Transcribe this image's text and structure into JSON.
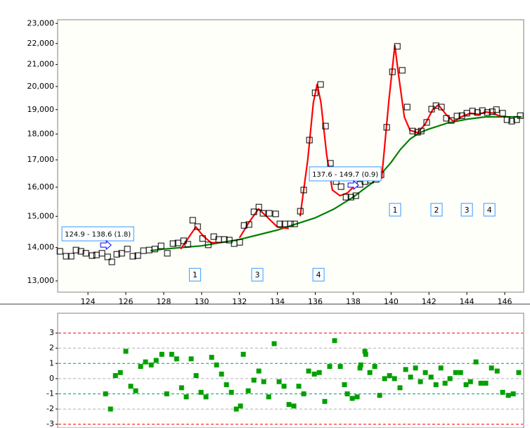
{
  "chart_data": [
    {
      "type": "scatter",
      "log_y": true,
      "xlim": [
        122.4,
        147.0
      ],
      "ylim": [
        12680,
        23190
      ],
      "xticks": [
        124,
        126,
        128,
        130,
        132,
        134,
        136,
        138,
        140,
        142,
        144,
        146
      ],
      "yticks": [
        {
          "value": 13000,
          "label": "13,000"
        },
        {
          "value": 14000,
          "label": "14,000"
        },
        {
          "value": 15000,
          "label": "15,000"
        },
        {
          "value": 16000,
          "label": "16,000"
        },
        {
          "value": 17000,
          "label": "17,000"
        },
        {
          "value": 18000,
          "label": "18,000"
        },
        {
          "value": 19000,
          "label": "19,000"
        },
        {
          "value": 20000,
          "label": "20,000"
        },
        {
          "value": 21000,
          "label": "21,000"
        },
        {
          "value": 22000,
          "label": "22,000"
        },
        {
          "value": 23000,
          "label": "23,000"
        }
      ],
      "series": [
        {
          "mark": "line",
          "color": "#008000",
          "x": [
            127.3,
            128,
            129,
            130,
            131,
            132,
            133,
            134,
            135,
            136,
            137,
            138,
            138.5,
            139,
            139.5,
            140,
            140.5,
            141,
            141.5,
            142,
            143,
            144,
            145,
            146,
            146.9
          ],
          "values": [
            13900,
            13950,
            14000,
            14050,
            14150,
            14250,
            14400,
            14550,
            14750,
            14950,
            15250,
            15650,
            15900,
            16150,
            16500,
            16900,
            17400,
            17800,
            18050,
            18200,
            18450,
            18600,
            18700,
            18700,
            18700
          ]
        },
        {
          "mark": "line",
          "color": "#ff0000",
          "x": [
            128.9,
            129.3,
            129.7,
            130.1,
            130.5,
            131.0,
            131.5,
            132.0,
            132.5,
            133.0,
            133.5,
            134.0,
            134.6,
            134.9,
            135.2,
            135.6,
            135.9,
            136.1,
            136.3,
            136.6,
            136.9,
            137.3,
            137.7,
            138.0,
            138.8,
            139.5,
            139.9,
            140.2,
            140.4,
            140.7,
            141.0,
            141.4,
            141.8,
            142.2,
            142.5,
            142.9,
            143.3,
            143.7,
            144.2,
            144.6,
            145.0,
            145.4,
            145.8
          ],
          "values": [
            13950,
            14300,
            14650,
            14350,
            14150,
            14150,
            null,
            14300,
            14800,
            15250,
            14950,
            14650,
            14600,
            null,
            15000,
            17000,
            19300,
            20100,
            19300,
            17200,
            15900,
            15700,
            15800,
            16000,
            null,
            16300,
            19500,
            21900,
            20500,
            18700,
            18150,
            18050,
            18400,
            19000,
            19200,
            18800,
            18500,
            18700,
            18850,
            18800,
            18900,
            18850,
            18700
          ]
        },
        {
          "mark": "square",
          "color": "#000000",
          "x": [
            122.52,
            122.85,
            123.11,
            123.37,
            123.63,
            123.89,
            124.22,
            124.45,
            124.74,
            125.04,
            125.26,
            125.52,
            125.78,
            126.08,
            126.37,
            126.63,
            126.93,
            127.23,
            127.53,
            127.86,
            128.19,
            128.49,
            128.75,
            129.05,
            129.27,
            129.53,
            129.79,
            130.05,
            130.35,
            130.64,
            130.9,
            131.2,
            131.46,
            131.72,
            132.01,
            132.24,
            132.5,
            132.76,
            133.02,
            133.24,
            133.57,
            133.91,
            134.13,
            134.39,
            134.69,
            134.91,
            135.21,
            135.39,
            135.69,
            135.99,
            136.28,
            136.54,
            136.8,
            137.1,
            137.36,
            137.62,
            137.88,
            138.14,
            138.36,
            138.62,
            138.92,
            139.21,
            139.47,
            139.77,
            140.07,
            140.33,
            140.59,
            140.85,
            141.14,
            141.4,
            141.59,
            141.88,
            142.14,
            142.37,
            142.66,
            142.92,
            143.18,
            143.48,
            143.74,
            144.0,
            144.3,
            144.56,
            144.82,
            145.08,
            145.34,
            145.56,
            145.89,
            146.12,
            146.37,
            146.63,
            146.82
          ],
          "values": [
            13880,
            13730,
            13730,
            13920,
            13880,
            13820,
            13750,
            13770,
            13820,
            13710,
            13560,
            13790,
            13820,
            13950,
            13730,
            13750,
            13900,
            13920,
            13950,
            14050,
            13820,
            14120,
            14140,
            14210,
            14100,
            14870,
            14660,
            14280,
            14080,
            14340,
            14250,
            14250,
            14230,
            14120,
            14160,
            14700,
            14730,
            15150,
            15310,
            15100,
            15100,
            15080,
            14750,
            14750,
            14750,
            14750,
            15170,
            15900,
            17760,
            19720,
            20090,
            18320,
            16870,
            16200,
            16020,
            15650,
            15650,
            15700,
            16100,
            16200,
            16250,
            16280,
            16450,
            18270,
            20660,
            21860,
            20730,
            19110,
            18120,
            18070,
            18120,
            18470,
            19020,
            19170,
            19110,
            18640,
            18550,
            18730,
            18750,
            18850,
            18940,
            18880,
            18960,
            18880,
            18910,
            19000,
            18850,
            18580,
            18520,
            18580,
            18750
          ]
        }
      ],
      "annotations": [
        {
          "text": "1",
          "x": 129.65,
          "y": 13180
        },
        {
          "text": "3",
          "x": 132.94,
          "y": 13180
        },
        {
          "text": "4",
          "x": 136.17,
          "y": 13180
        },
        {
          "text": "1",
          "x": 140.21,
          "y": 15220
        },
        {
          "text": "2",
          "x": 142.4,
          "y": 15220
        },
        {
          "text": "3",
          "x": 144.0,
          "y": 15220
        },
        {
          "text": "4",
          "x": 145.19,
          "y": 15220
        }
      ],
      "range_boxes": [
        {
          "text": "124.9 - 138.6 (1.8)",
          "x": 124.52,
          "y": 14430
        },
        {
          "text": "137.6 - 149.7 (0.9)",
          "x": 137.58,
          "y": 16480
        }
      ]
    },
    {
      "type": "scatter",
      "log_y": false,
      "xlim": [
        122.4,
        147.0
      ],
      "ylim": [
        -3.2,
        4.3
      ],
      "yticks": [
        3,
        2,
        1,
        0,
        -1,
        -2,
        -3
      ],
      "grid_colors": [
        "#ff0000",
        "#b0b0b0",
        "#00a070",
        "#b0b0b0",
        "#00a070",
        "#b0b0b0",
        "#ff0000"
      ],
      "series": [
        {
          "mark": "filled-square",
          "color": "#00a000",
          "x": [
            124.93,
            125.19,
            125.45,
            125.71,
            126.0,
            126.26,
            126.52,
            126.78,
            127.04,
            127.34,
            127.6,
            127.9,
            128.16,
            128.42,
            128.68,
            128.94,
            129.19,
            129.45,
            129.71,
            129.97,
            130.23,
            130.53,
            130.79,
            131.05,
            131.31,
            131.57,
            131.83,
            132.05,
            132.2,
            132.46,
            132.76,
            133.02,
            133.28,
            133.54,
            133.83,
            134.09,
            134.35,
            134.61,
            134.87,
            135.13,
            135.39,
            135.65,
            135.95,
            136.21,
            136.5,
            136.76,
            137.02,
            137.32,
            137.54,
            137.69,
            137.95,
            138.21,
            138.36,
            138.4,
            138.62,
            138.66,
            138.88,
            139.14,
            139.4,
            139.66,
            139.92,
            140.18,
            140.47,
            140.77,
            141.03,
            141.29,
            141.55,
            141.81,
            142.11,
            142.37,
            142.63,
            142.85,
            143.11,
            143.41,
            143.67,
            143.96,
            144.19,
            144.48,
            144.74,
            145.0,
            145.3,
            145.6,
            145.89,
            146.19,
            146.45,
            146.74
          ],
          "values": [
            -1.0,
            -2.0,
            0.2,
            0.4,
            1.8,
            -0.5,
            -0.8,
            0.8,
            1.1,
            0.9,
            1.2,
            1.6,
            -1.0,
            1.6,
            1.3,
            -0.6,
            -1.2,
            1.3,
            0.2,
            -0.9,
            -1.2,
            1.4,
            0.9,
            0.3,
            -0.4,
            -0.9,
            -2.0,
            -1.8,
            1.6,
            -0.8,
            -0.1,
            0.5,
            -0.2,
            -1.2,
            2.3,
            -0.2,
            -0.5,
            -1.7,
            -1.8,
            -0.5,
            -1.0,
            0.5,
            0.3,
            0.4,
            -1.5,
            0.8,
            2.5,
            0.8,
            -0.4,
            -1.0,
            -1.3,
            -1.2,
            0.7,
            0.9,
            1.8,
            1.6,
            0.4,
            0.8,
            -1.1,
            0.0,
            0.2,
            0.0,
            -0.6,
            0.6,
            0.1,
            0.7,
            -0.2,
            0.4,
            0.1,
            -0.4,
            0.7,
            -0.3,
            0.0,
            0.4,
            0.4,
            -0.4,
            -0.2,
            1.1,
            -0.3,
            -0.3,
            0.7,
            0.5,
            -0.9,
            -1.1,
            -1.0,
            0.4
          ]
        }
      ]
    }
  ]
}
